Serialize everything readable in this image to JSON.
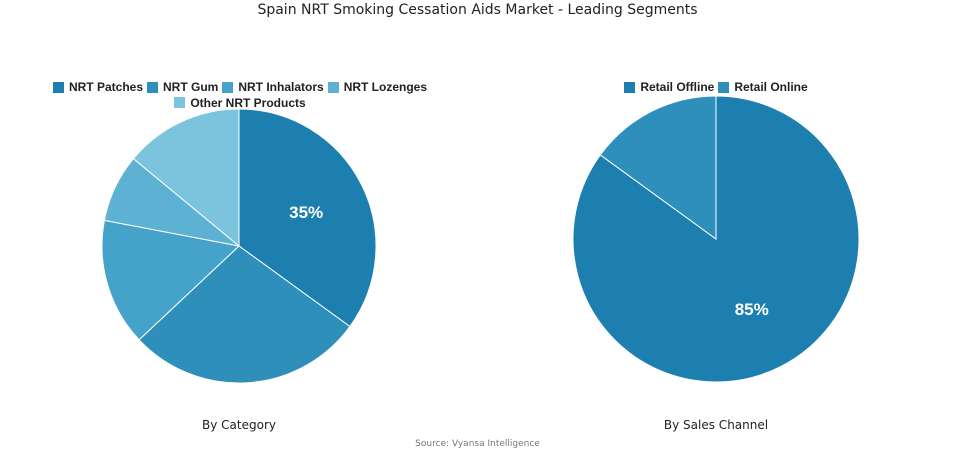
{
  "title": "Spain NRT Smoking Cessation Aids Market - Leading Segments",
  "source": "Source: Vyansa Intelligence",
  "chart_data": [
    {
      "type": "pie",
      "subtitle": "By Category",
      "legend_position": "top",
      "categories": [
        "NRT Patches",
        "NRT Gum",
        "NRT Inhalators",
        "NRT Lozenges",
        "Other NRT Products"
      ],
      "values": [
        35,
        28,
        15,
        8,
        14
      ],
      "colors": [
        "#1c7fb0",
        "#2e8fba",
        "#45a2c8",
        "#5db1d2",
        "#7cc4dd"
      ],
      "data_labels": [
        "35%",
        "",
        "",
        "",
        ""
      ]
    },
    {
      "type": "pie",
      "subtitle": "By Sales Channel",
      "legend_position": "top",
      "categories": [
        "Retail Offline",
        "Retail Online"
      ],
      "values": [
        85,
        15
      ],
      "colors": [
        "#1c7fb0",
        "#2e8fba"
      ],
      "data_labels": [
        "85%",
        ""
      ]
    }
  ]
}
